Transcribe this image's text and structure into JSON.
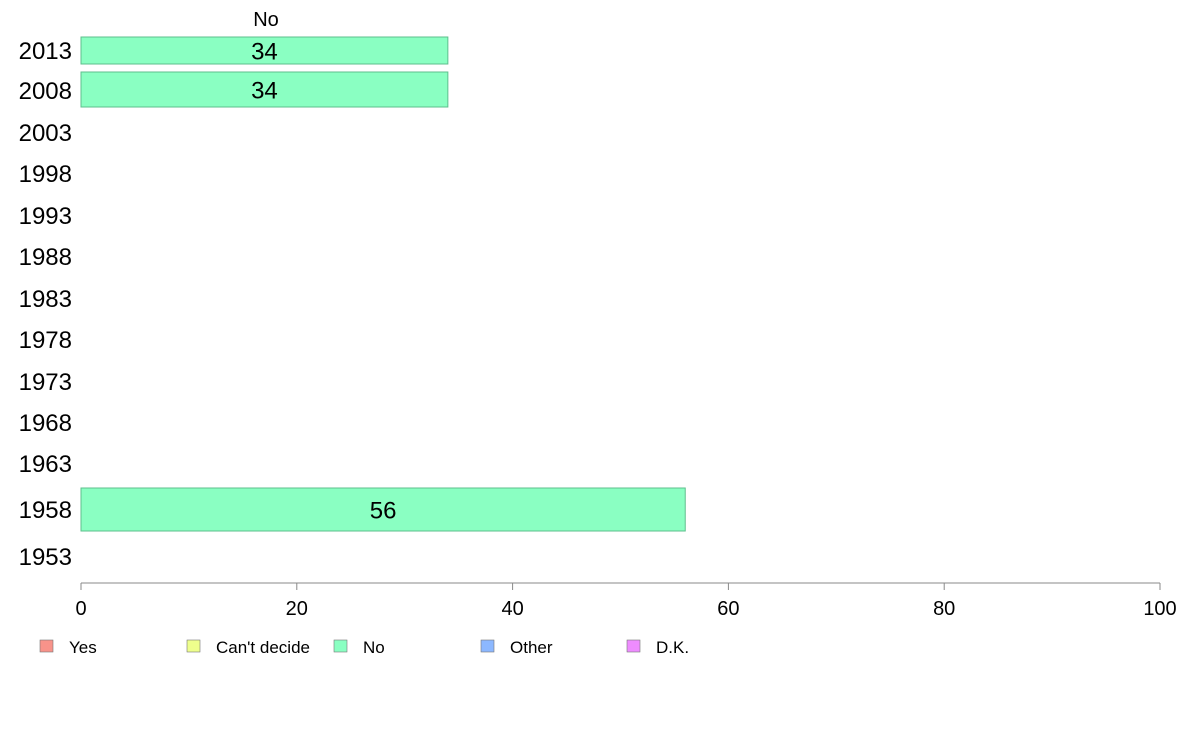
{
  "chart_data": {
    "type": "bar",
    "orientation": "horizontal",
    "column_header": "No",
    "categories": [
      "2013",
      "2008",
      "2003",
      "1998",
      "1993",
      "1988",
      "1983",
      "1978",
      "1973",
      "1968",
      "1963",
      "1958",
      "1953"
    ],
    "series": [
      {
        "name": "No",
        "values": [
          34,
          34,
          null,
          null,
          null,
          null,
          null,
          null,
          null,
          null,
          null,
          56,
          null
        ]
      }
    ],
    "bar_labels": [
      "34",
      "34",
      "",
      "",
      "",
      "",
      "",
      "",
      "",
      "",
      "",
      "56",
      ""
    ],
    "xlim": [
      0,
      100
    ],
    "xticks": [
      0,
      20,
      40,
      60,
      80,
      100
    ],
    "grid": false,
    "legend_position": "bottom-left",
    "legend": [
      {
        "label": "Yes",
        "color": "#F8938A"
      },
      {
        "label": "Can't decide",
        "color": "#EEFF8C"
      },
      {
        "label": "No",
        "color": "#8AFFC2"
      },
      {
        "label": "Other",
        "color": "#8CB8FF"
      },
      {
        "label": "D.K.",
        "color": "#EE8CFF"
      }
    ],
    "colors": {
      "bar_fill": "#8AFFC2",
      "bar_stroke": "#5EBF8C",
      "axis": "#888888"
    }
  }
}
